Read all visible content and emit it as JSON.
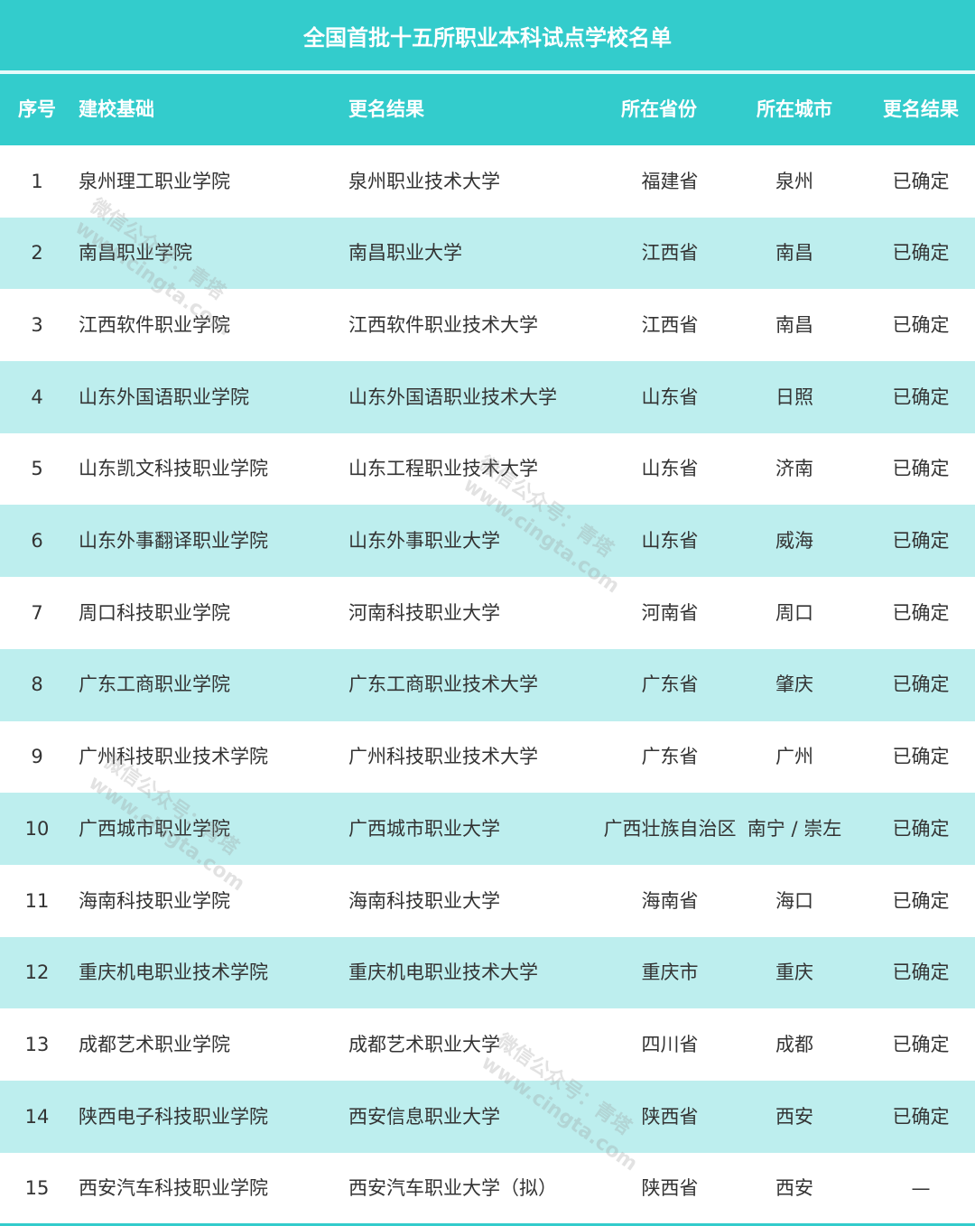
{
  "title": "全国首批十五所职业本科试点学校名单",
  "colors": {
    "teal": "#33cccc",
    "row_alt": "#bdeeee"
  },
  "columns": [
    "序号",
    "建校基础",
    "更名结果",
    "所在省份",
    "所在城市",
    "更名结果"
  ],
  "rows": [
    [
      "1",
      "泉州理工职业学院",
      "泉州职业技术大学",
      "福建省",
      "泉州",
      "已确定"
    ],
    [
      "2",
      "南昌职业学院",
      "南昌职业大学",
      "江西省",
      "南昌",
      "已确定"
    ],
    [
      "3",
      "江西软件职业学院",
      "江西软件职业技术大学",
      "江西省",
      "南昌",
      "已确定"
    ],
    [
      "4",
      "山东外国语职业学院",
      "山东外国语职业技术大学",
      "山东省",
      "日照",
      "已确定"
    ],
    [
      "5",
      "山东凯文科技职业学院",
      "山东工程职业技术大学",
      "山东省",
      "济南",
      "已确定"
    ],
    [
      "6",
      "山东外事翻译职业学院",
      "山东外事职业大学",
      "山东省",
      "威海",
      "已确定"
    ],
    [
      "7",
      "周口科技职业学院",
      "河南科技职业大学",
      "河南省",
      "周口",
      "已确定"
    ],
    [
      "8",
      "广东工商职业学院",
      "广东工商职业技术大学",
      "广东省",
      "肇庆",
      "已确定"
    ],
    [
      "9",
      "广州科技职业技术学院",
      "广州科技职业技术大学",
      "广东省",
      "广州",
      "已确定"
    ],
    [
      "10",
      "广西城市职业学院",
      "广西城市职业大学",
      "广西壮族自治区",
      "南宁 / 崇左",
      "已确定"
    ],
    [
      "11",
      "海南科技职业学院",
      "海南科技职业大学",
      "海南省",
      "海口",
      "已确定"
    ],
    [
      "12",
      "重庆机电职业技术学院",
      "重庆机电职业技术大学",
      "重庆市",
      "重庆",
      "已确定"
    ],
    [
      "13",
      "成都艺术职业学院",
      "成都艺术职业大学",
      "四川省",
      "成都",
      "已确定"
    ],
    [
      "14",
      "陕西电子科技职业学院",
      "西安信息职业大学",
      "陕西省",
      "西安",
      "已确定"
    ],
    [
      "15",
      "西安汽车科技职业学院",
      "西安汽车职业大学（拟）",
      "陕西省",
      "西安",
      "—"
    ]
  ],
  "watermark": {
    "line1": "微信公众号：青塔",
    "line2": "www.cingta.com"
  }
}
